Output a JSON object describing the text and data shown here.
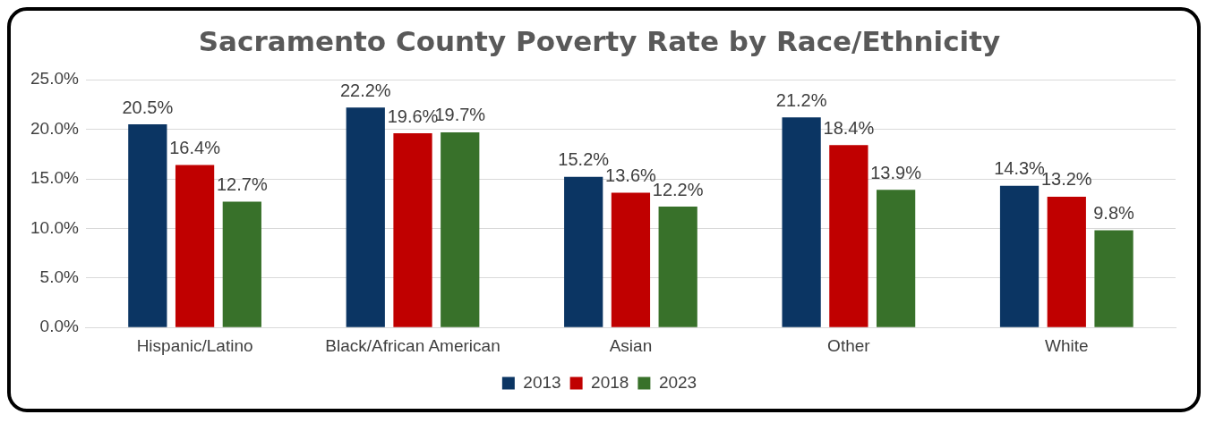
{
  "chart_data": {
    "type": "bar",
    "title": "Sacramento County Poverty Rate by Race/Ethnicity",
    "categories": [
      "Hispanic/Latino",
      "Black/African American",
      "Asian",
      "Other",
      "White"
    ],
    "series": [
      {
        "name": "2013",
        "color": "#0b3563",
        "values": [
          20.5,
          22.2,
          15.2,
          21.2,
          14.3
        ],
        "value_labels": [
          "20.5%",
          "22.2%",
          "15.2%",
          "21.2%",
          "14.3%"
        ]
      },
      {
        "name": "2018",
        "color": "#c00000",
        "values": [
          16.4,
          19.6,
          13.6,
          18.4,
          13.2
        ],
        "value_labels": [
          "16.4%",
          "19.6%",
          "13.6%",
          "18.4%",
          "13.2%"
        ]
      },
      {
        "name": "2023",
        "color": "#38712a",
        "values": [
          12.7,
          19.7,
          12.2,
          13.9,
          9.8
        ],
        "value_labels": [
          "12.7%",
          "19.7%",
          "12.2%",
          "13.9%",
          "9.8%"
        ]
      }
    ],
    "ylim": [
      0,
      25
    ],
    "yticks": [
      {
        "value": 0,
        "label": "0.0%"
      },
      {
        "value": 5,
        "label": "5.0%"
      },
      {
        "value": 10,
        "label": "10.0%"
      },
      {
        "value": 15,
        "label": "15.0%"
      },
      {
        "value": 20,
        "label": "20.0%"
      },
      {
        "value": 25,
        "label": "25.0%"
      }
    ],
    "grid": "y",
    "legend": "bottom"
  }
}
